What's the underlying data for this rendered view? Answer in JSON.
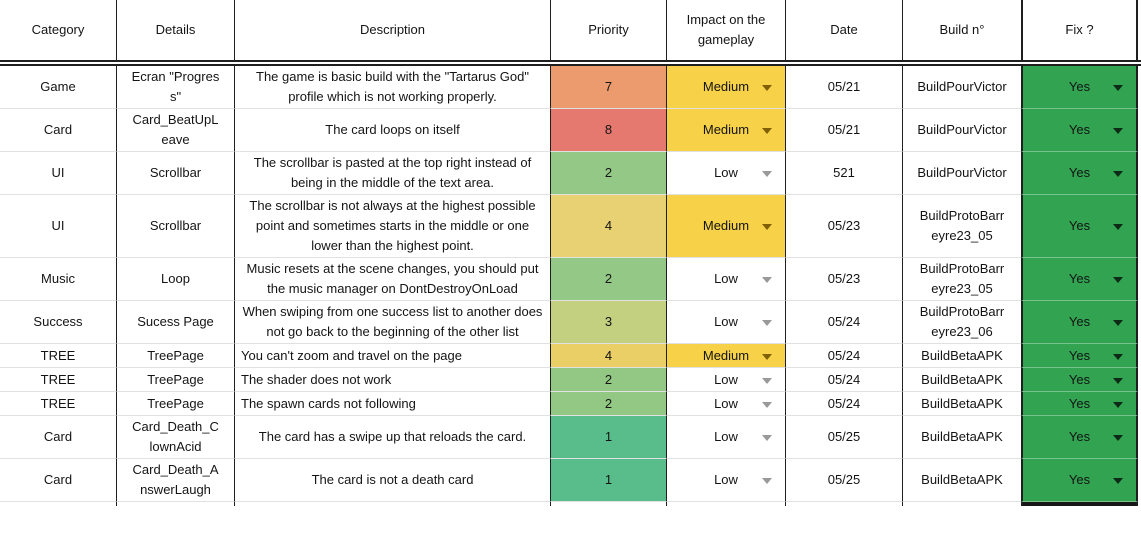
{
  "table": {
    "columns": [
      {
        "label": "Category"
      },
      {
        "label": "Details"
      },
      {
        "label": "Description"
      },
      {
        "label": "Priority"
      },
      {
        "label": "Impact on the gameplay"
      },
      {
        "label": "Date"
      },
      {
        "label": "Build n°"
      },
      {
        "label": "Fix ?"
      }
    ],
    "colors": {
      "impact_medium_bg": "#f7d147",
      "impact_low_bg": "#ffffff",
      "fix_yes_bg": "#31a351",
      "medium_arrow": "#7f6005",
      "low_arrow": "#999999",
      "yes_arrow": "#0c2a16",
      "column_border": "#1f1f1f",
      "row_separator": "#e1e1e1"
    },
    "rows": [
      {
        "category": "Game",
        "details": "Ecran \"Progress\"",
        "description": "The game is basic build with the \"Tartarus God\" profile which is not working properly.",
        "desc_align": "center",
        "priority": {
          "value": "7",
          "color": "#eb9b6e"
        },
        "impact": {
          "value": "Medium",
          "level": "medium"
        },
        "date": "05/21",
        "build": "BuildPourVictor",
        "fix": "Yes"
      },
      {
        "category": "Card",
        "details": "Card_BeatUpLeave",
        "description": "The card loops on itself",
        "desc_align": "center",
        "priority": {
          "value": "8",
          "color": "#e5786f"
        },
        "impact": {
          "value": "Medium",
          "level": "medium"
        },
        "date": "05/21",
        "build": "BuildPourVictor",
        "fix": "Yes"
      },
      {
        "category": "UI",
        "details": "Scrollbar",
        "description": "The scrollbar is pasted at the top right instead of being in the middle of the text area.",
        "desc_align": "center",
        "priority": {
          "value": "2",
          "color": "#94c886"
        },
        "impact": {
          "value": "Low",
          "level": "low"
        },
        "date": "521",
        "build": "BuildPourVictor",
        "fix": "Yes"
      },
      {
        "category": "UI",
        "details": "Scrollbar",
        "description": "The scrollbar is not always at the highest possible point and sometimes starts in the middle or one lower than the highest point.",
        "desc_align": "center",
        "priority": {
          "value": "4",
          "color": "#e8d173"
        },
        "impact": {
          "value": "Medium",
          "level": "medium"
        },
        "date": "05/23",
        "build": "BuildProtoBarreyre23_05",
        "fix": "Yes"
      },
      {
        "category": "Music",
        "details": "Loop",
        "description": "Music resets at the scene changes, you should put the music manager on DontDestroyOnLoad",
        "desc_align": "center",
        "priority": {
          "value": "2",
          "color": "#94c886"
        },
        "impact": {
          "value": "Low",
          "level": "low"
        },
        "date": "05/23",
        "build": "BuildProtoBarreyre23_05",
        "fix": "Yes"
      },
      {
        "category": "Success",
        "details": "Sucess Page",
        "description": "When swiping from one success list to another does not go back to the beginning of the other list",
        "desc_align": "center",
        "priority": {
          "value": "3",
          "color": "#c2d080"
        },
        "impact": {
          "value": "Low",
          "level": "low"
        },
        "date": "05/24",
        "build": "BuildProtoBarreyre23_06",
        "fix": "Yes"
      },
      {
        "category": "TREE",
        "details": "TreePage",
        "description": "You can't zoom and travel on the page",
        "desc_align": "left",
        "priority": {
          "value": "4",
          "color": "#e9cf66"
        },
        "impact": {
          "value": "Medium",
          "level": "medium"
        },
        "date": "05/24",
        "build": "BuildBetaAPK",
        "fix": "Yes"
      },
      {
        "category": "TREE",
        "details": "TreePage",
        "description": "The shader does not work",
        "desc_align": "left",
        "priority": {
          "value": "2",
          "color": "#92c884"
        },
        "impact": {
          "value": "Low",
          "level": "low"
        },
        "date": "05/24",
        "build": "BuildBetaAPK",
        "fix": "Yes"
      },
      {
        "category": "TREE",
        "details": "TreePage",
        "description": "The spawn cards not following",
        "desc_align": "left",
        "priority": {
          "value": "2",
          "color": "#92c884"
        },
        "impact": {
          "value": "Low",
          "level": "low"
        },
        "date": "05/24",
        "build": "BuildBetaAPK",
        "fix": "Yes"
      },
      {
        "category": "Card",
        "details": "Card_Death_ClownAcid",
        "description": "The card has a swipe up that reloads the card.",
        "desc_align": "center",
        "priority": {
          "value": "1",
          "color": "#58bd8b"
        },
        "impact": {
          "value": "Low",
          "level": "low"
        },
        "date": "05/25",
        "build": "BuildBetaAPK",
        "fix": "Yes"
      },
      {
        "category": "Card",
        "details": "Card_Death_AnswerLaugh",
        "description": "The card is not a death card",
        "desc_align": "center",
        "priority": {
          "value": "1",
          "color": "#58bd8b"
        },
        "impact": {
          "value": "Low",
          "level": "low"
        },
        "date": "05/25",
        "build": "BuildBetaAPK",
        "fix": "Yes"
      }
    ]
  }
}
